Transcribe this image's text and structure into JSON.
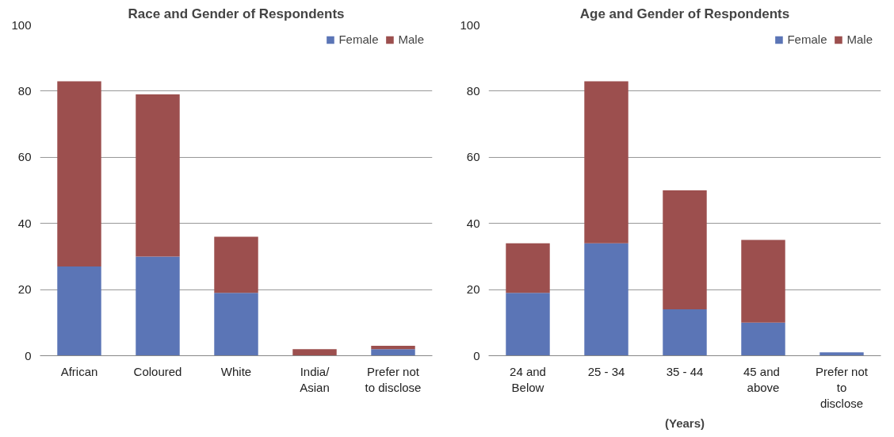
{
  "chart_data": [
    {
      "type": "bar",
      "stacked": true,
      "title": "Race and Gender of Respondents",
      "categories": [
        "African",
        "Coloured",
        "White",
        "India/\nAsian",
        "Prefer not\nto disclose"
      ],
      "series": [
        {
          "name": "Female",
          "color": "#5b75b6",
          "values": [
            27,
            30,
            19,
            0,
            2
          ]
        },
        {
          "name": "Male",
          "color": "#9c4f4e",
          "values": [
            56,
            49,
            17,
            2,
            1
          ]
        }
      ],
      "ylim": [
        0,
        100
      ],
      "yticks": [
        0,
        20,
        40,
        60,
        80,
        100
      ],
      "grid": "y",
      "legend": "top right"
    },
    {
      "type": "bar",
      "stacked": true,
      "title": "Age and Gender of Respondents",
      "xlabel": "(Years)",
      "categories": [
        "24 and\nBelow",
        "25 - 34",
        "35 - 44",
        "45  and\nabove",
        "Prefer not\nto\ndisclose"
      ],
      "series": [
        {
          "name": "Female",
          "color": "#5b75b6",
          "values": [
            19,
            34,
            14,
            10,
            1
          ]
        },
        {
          "name": "Male",
          "color": "#9c4f4e",
          "values": [
            15,
            49,
            36,
            25,
            0
          ]
        }
      ],
      "ylim": [
        0,
        100
      ],
      "yticks": [
        0,
        20,
        40,
        60,
        80,
        100
      ],
      "grid": "y",
      "legend": "top right"
    }
  ]
}
